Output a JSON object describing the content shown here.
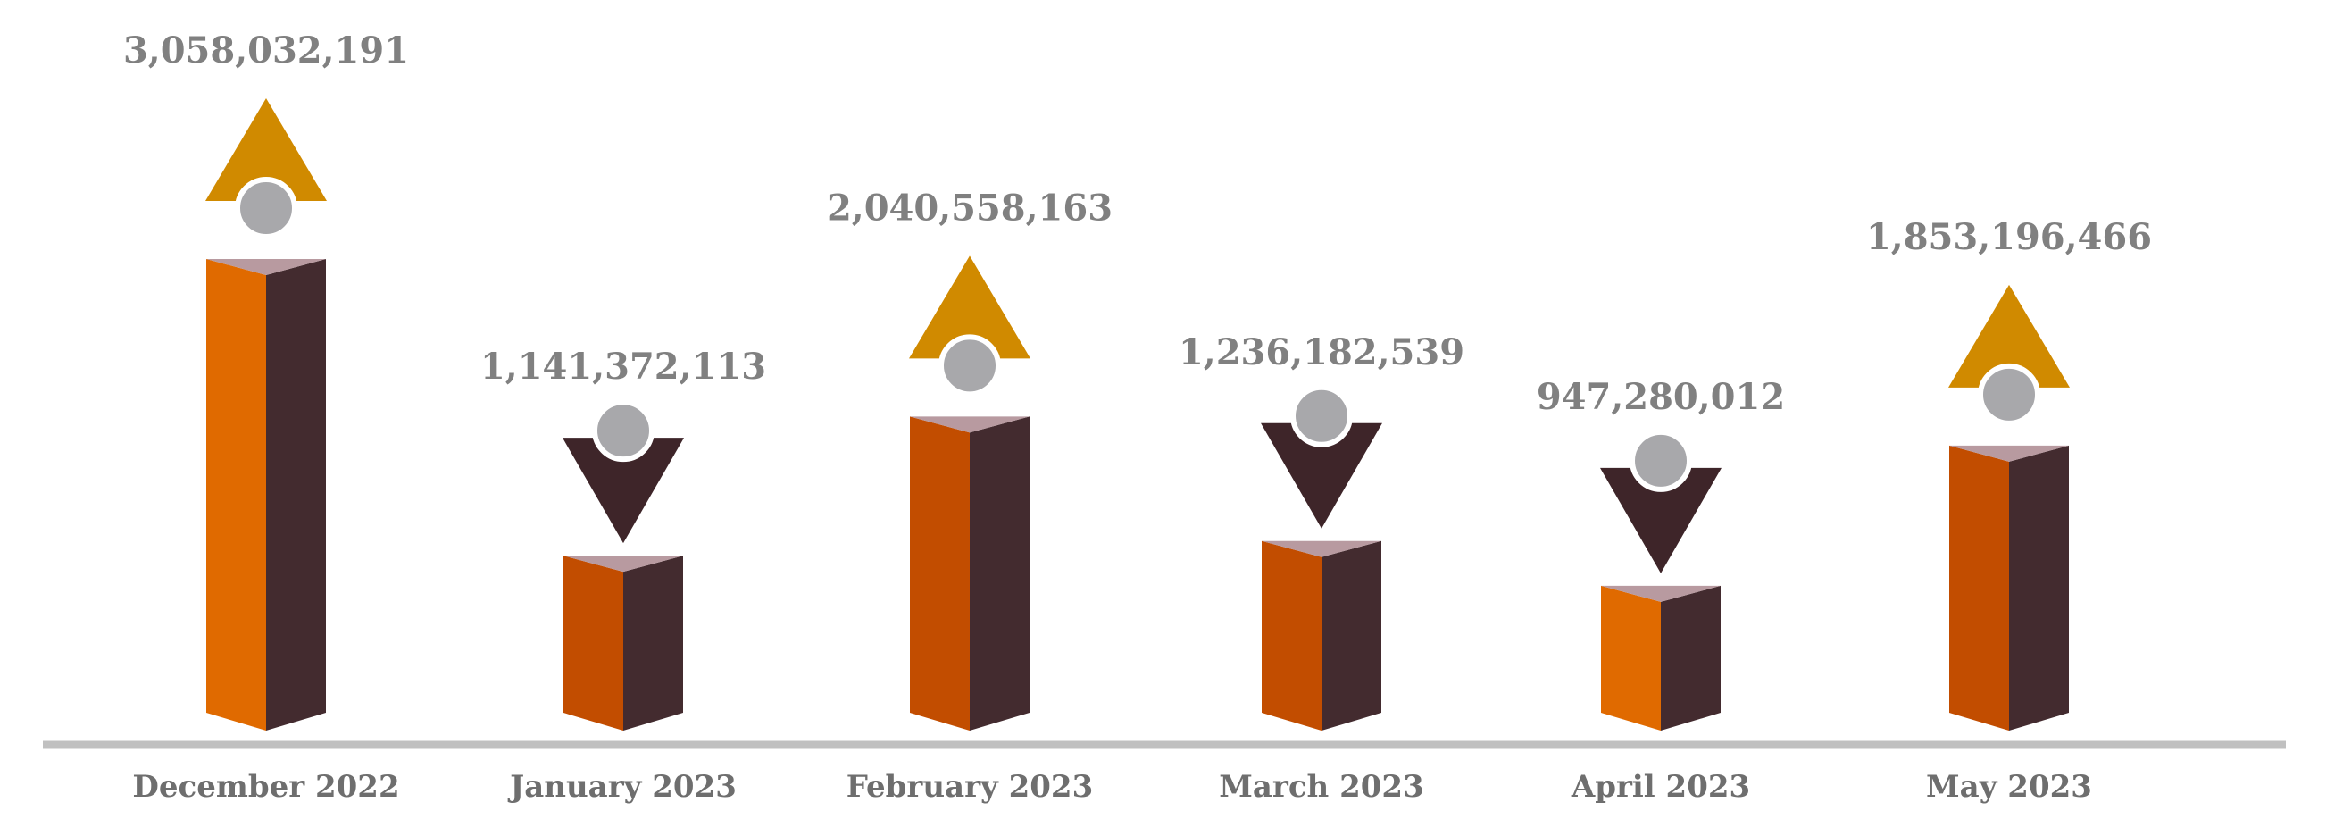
{
  "chart_data": {
    "type": "bar",
    "title": "",
    "xlabel": "",
    "ylabel": "",
    "categories": [
      "December 2022",
      "January 2023",
      "February 2023",
      "March 2023",
      "April 2023",
      "May 2023"
    ],
    "values": [
      3058032191,
      1141372113,
      2040558163,
      1236182539,
      947280012,
      1853196466
    ],
    "value_labels": [
      "3,058,032,191",
      "1,141,372,113",
      "2,040,558,163",
      "1,236,182,539",
      "947,280,012",
      "1,853,196,466"
    ],
    "trend": [
      "up",
      "down",
      "up",
      "down",
      "down",
      "up"
    ],
    "grid": false,
    "legend": "none"
  },
  "colors": {
    "bar_front_light": "#e06a00",
    "bar_front_dark": "#c24d00",
    "bar_side": "#432b2f",
    "bar_top": "#b89aa0",
    "arrow_up": "#d08a00",
    "arrow_down": "#3e2529",
    "person": "#a8a8ab",
    "baseline": "#c0c0c0",
    "label_text": "#808080"
  }
}
